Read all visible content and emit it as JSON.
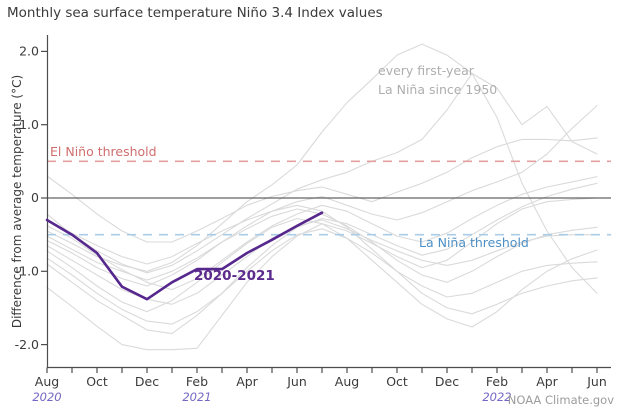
{
  "page": {
    "title": "Monthly sea surface temperature Niño 3.4 Index values",
    "credit": "NOAA Climate.gov"
  },
  "chart_data": {
    "type": "line",
    "title": "Monthly sea surface temperature Niño 3.4 Index values",
    "ylabel": "Difference from average temperature (°C)",
    "ylim": [
      -2.3,
      2.2
    ],
    "grid": false,
    "x_months": [
      "Aug 2020",
      "Sep 2020",
      "Oct 2020",
      "Nov 2020",
      "Dec 2020",
      "Jan 2021",
      "Feb 2021",
      "Mar 2021",
      "Apr 2021",
      "May 2021",
      "Jun 2021",
      "Jul 2021",
      "Aug 2021",
      "Sep 2021",
      "Oct 2021",
      "Nov 2021",
      "Dec 2021",
      "Jan 2022",
      "Feb 2022",
      "Mar 2022",
      "Apr 2022",
      "May 2022",
      "Jun 2022"
    ],
    "x_ticks": [
      {
        "month": 0,
        "label": "Aug"
      },
      {
        "month": 2,
        "label": "Oct"
      },
      {
        "month": 4,
        "label": "Dec"
      },
      {
        "month": 6,
        "label": "Feb"
      },
      {
        "month": 8,
        "label": "Apr"
      },
      {
        "month": 10,
        "label": "Jun"
      },
      {
        "month": 12,
        "label": "Aug"
      },
      {
        "month": 14,
        "label": "Oct"
      },
      {
        "month": 16,
        "label": "Dec"
      },
      {
        "month": 18,
        "label": "Feb"
      },
      {
        "month": 20,
        "label": "Apr"
      },
      {
        "month": 22,
        "label": "Jun"
      }
    ],
    "year_labels": [
      {
        "month": 0,
        "text": "2020"
      },
      {
        "month": 6,
        "text": "2021"
      },
      {
        "month": 18,
        "text": "2022"
      }
    ],
    "y_ticks": [
      {
        "value": 2,
        "label": "2.0"
      },
      {
        "value": 1,
        "label": "1.0"
      },
      {
        "value": 0,
        "label": "0"
      },
      {
        "value": -1,
        "label": "-1.0"
      },
      {
        "value": -2,
        "label": "-2.0"
      }
    ],
    "zero_line_value": 0,
    "thresholds": {
      "el_nino": {
        "label": "El Niño threshold",
        "value": 0.5,
        "line_color": "#e2a0a0",
        "label_color": "#d06e6e"
      },
      "la_nina": {
        "label": "La Niña threshold",
        "value": -0.5,
        "line_color": "#a9cde9",
        "label_color": "#4d8fc5"
      }
    },
    "highlight_series": {
      "name": "2020-2021",
      "color": "#56278d",
      "start_month": 0,
      "values": [
        -0.3,
        -0.5,
        -0.75,
        -1.21,
        -1.38,
        -1.15,
        -0.97,
        -0.97,
        -0.75,
        -0.57,
        -0.38,
        -0.2
      ]
    },
    "background_series": {
      "label": "every first-year\nLa Niña since 1950",
      "label_color": "#aeaeae",
      "color": "#dadada",
      "series": [
        [
          -0.45,
          -0.62,
          -0.8,
          -0.92,
          -1.0,
          -0.88,
          -0.65,
          -0.35,
          -0.05,
          0.18,
          0.45,
          0.9,
          1.3,
          1.62,
          1.95,
          2.1,
          1.95,
          1.7,
          1.1,
          0.2,
          -0.45,
          -0.95,
          -1.3
        ],
        [
          -0.22,
          -0.5,
          -0.72,
          -0.9,
          -1.02,
          -0.92,
          -0.72,
          -0.5,
          -0.28,
          -0.08,
          0.12,
          0.25,
          0.35,
          0.5,
          0.62,
          0.8,
          1.2,
          1.7,
          1.5,
          1.0,
          1.25,
          0.77,
          0.6
        ],
        [
          0.3,
          0.05,
          -0.22,
          -0.45,
          -0.6,
          -0.6,
          -0.45,
          -0.28,
          -0.1,
          0.02,
          0.1,
          0.15,
          0.05,
          -0.05,
          0.08,
          0.2,
          0.35,
          0.55,
          0.7,
          0.8,
          0.8,
          0.78,
          0.82
        ],
        [
          -0.58,
          -0.75,
          -0.95,
          -1.1,
          -1.2,
          -1.05,
          -0.85,
          -0.6,
          -0.38,
          -0.18,
          -0.05,
          0.02,
          -0.1,
          -0.22,
          -0.3,
          -0.2,
          -0.05,
          0.1,
          0.22,
          0.35,
          0.6,
          0.95,
          1.26
        ],
        [
          -0.38,
          -0.55,
          -0.78,
          -0.98,
          -1.15,
          -1.25,
          -1.1,
          -0.85,
          -0.6,
          -0.38,
          -0.22,
          -0.1,
          -0.18,
          -0.35,
          -0.52,
          -0.6,
          -0.48,
          -0.28,
          -0.1,
          0.05,
          0.15,
          0.22,
          0.29
        ],
        [
          -0.9,
          -1.15,
          -1.4,
          -1.6,
          -1.8,
          -1.85,
          -1.6,
          -1.3,
          -0.95,
          -0.65,
          -0.4,
          -0.28,
          -0.35,
          -0.5,
          -0.65,
          -0.78,
          -0.7,
          -0.5,
          -0.3,
          -0.12,
          0.02,
          0.12,
          0.2
        ],
        [
          -1.22,
          -1.48,
          -1.75,
          -2.0,
          -2.07,
          -2.07,
          -2.05,
          -1.6,
          -1.15,
          -0.8,
          -0.52,
          -0.35,
          -0.45,
          -0.62,
          -0.8,
          -0.95,
          -0.85,
          -0.6,
          -0.35,
          -0.15,
          -0.05,
          -0.02,
          0.0
        ],
        [
          -0.52,
          -0.7,
          -0.88,
          -1.0,
          -1.12,
          -1.0,
          -0.82,
          -0.6,
          -0.42,
          -0.25,
          -0.15,
          -0.22,
          -0.38,
          -0.6,
          -0.85,
          -1.05,
          -1.15,
          -1.0,
          -0.8,
          -0.62,
          -0.5,
          -0.44,
          -0.4
        ],
        [
          -0.65,
          -0.85,
          -1.05,
          -1.25,
          -1.38,
          -1.45,
          -1.3,
          -1.05,
          -0.8,
          -0.55,
          -0.38,
          -0.3,
          -0.42,
          -0.58,
          -0.72,
          -0.85,
          -0.92,
          -0.85,
          -0.72,
          -0.6,
          -0.52,
          -0.5,
          -0.5
        ],
        [
          -0.72,
          -0.95,
          -1.2,
          -1.42,
          -1.55,
          -1.4,
          -1.15,
          -0.88,
          -0.62,
          -0.4,
          -0.28,
          -0.35,
          -0.55,
          -0.85,
          -1.15,
          -1.45,
          -1.65,
          -1.76,
          -1.55,
          -1.25,
          -1.0,
          -0.83,
          -0.71
        ],
        [
          -0.82,
          -1.05,
          -1.3,
          -1.52,
          -1.68,
          -1.72,
          -1.55,
          -1.3,
          -1.0,
          -0.72,
          -0.5,
          -0.42,
          -0.55,
          -0.75,
          -1.0,
          -1.2,
          -1.35,
          -1.3,
          -1.15,
          -1.0,
          -0.92,
          -0.89,
          -0.87
        ],
        [
          -0.3,
          -0.48,
          -0.65,
          -0.8,
          -0.9,
          -0.8,
          -0.62,
          -0.45,
          -0.3,
          -0.18,
          -0.1,
          -0.18,
          -0.4,
          -0.7,
          -1.0,
          -1.3,
          -1.5,
          -1.58,
          -1.45,
          -1.3,
          -1.2,
          -1.13,
          -1.09
        ]
      ]
    },
    "axis_colors": {
      "axis": "#4d4d4d",
      "zero_line": "#3d3d3d",
      "tick_label": "#3b3b3b",
      "year_label": "#7568c4"
    }
  }
}
